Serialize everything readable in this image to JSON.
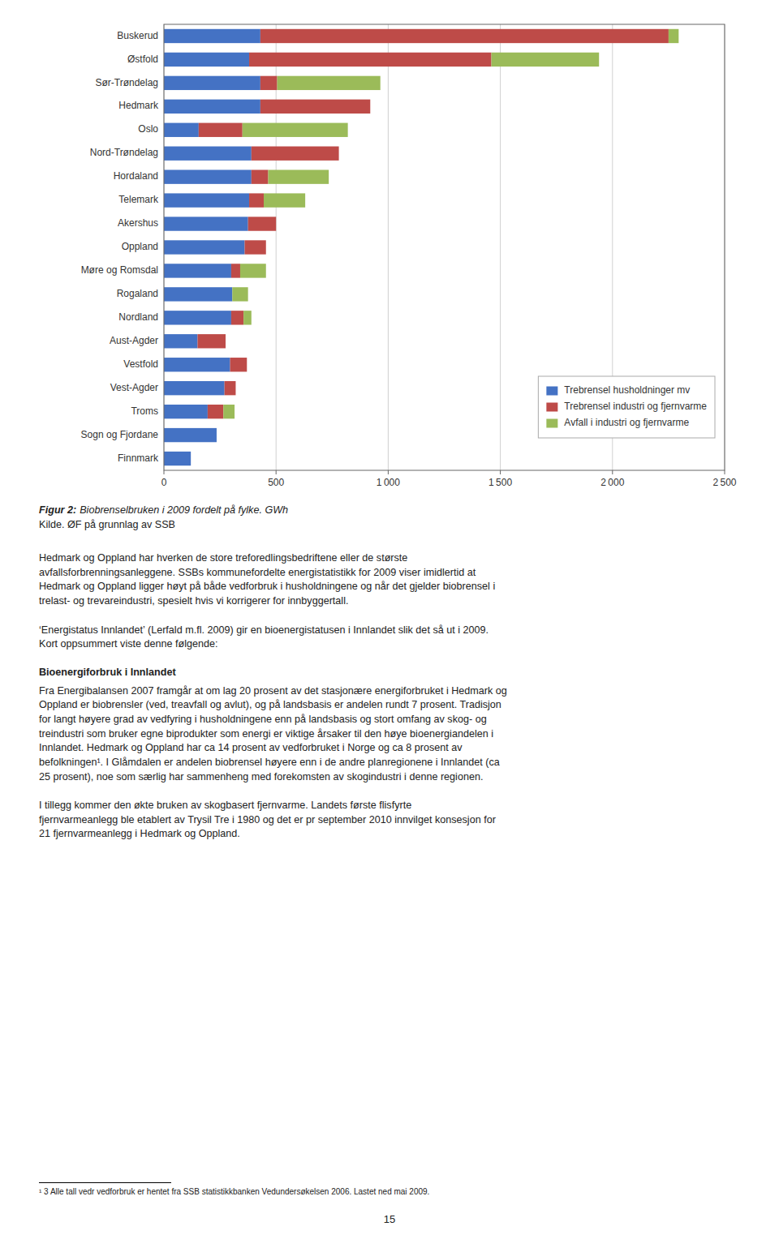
{
  "chart_data": {
    "type": "bar",
    "orientation": "horizontal",
    "stacked": true,
    "title": "Biobrenselbruken i 2009 fordelt på fylke. GWh",
    "categories": [
      "Buskerud",
      "Østfold",
      "Sør-Trøndelag",
      "Hedmark",
      "Oslo",
      "Nord-Trøndelag",
      "Hordaland",
      "Telemark",
      "Akershus",
      "Oppland",
      "Møre og Romsdal",
      "Rogaland",
      "Nordland",
      "Aust-Agder",
      "Vestfold",
      "Vest-Agder",
      "Troms",
      "Sogn og Fjordane",
      "Finnmark"
    ],
    "series": [
      {
        "name": "Trebrensel husholdninger mv",
        "color": "#4472C4",
        "values": [
          430,
          380,
          430,
          430,
          155,
          390,
          390,
          380,
          375,
          360,
          300,
          305,
          300,
          150,
          295,
          270,
          195,
          235,
          120
        ]
      },
      {
        "name": "Trebrensel industri og fjernvarme",
        "color": "#BE4B48",
        "values": [
          1820,
          1080,
          75,
          490,
          195,
          390,
          75,
          65,
          125,
          95,
          40,
          0,
          55,
          125,
          75,
          50,
          70,
          0,
          0
        ]
      },
      {
        "name": "Avfall i industri og fjernvarme",
        "color": "#9BBB59",
        "values": [
          45,
          480,
          460,
          0,
          470,
          0,
          270,
          185,
          0,
          0,
          115,
          70,
          35,
          0,
          0,
          0,
          50,
          0,
          0
        ]
      }
    ],
    "xlim": [
      0,
      2500
    ],
    "xticks": [
      0,
      500,
      {
        "value": 1000,
        "label": "1 000"
      },
      {
        "value": 1500,
        "label": "1 500"
      },
      {
        "value": 2000,
        "label": "2 000"
      },
      {
        "value": 2500,
        "label": "2 500"
      }
    ],
    "grid": true,
    "legend": "lower right"
  },
  "page": {
    "figure_label": "Figur 2:",
    "source": "Kilde. ØF på grunnlag av SSB",
    "body_text": "Hedmark og Oppland har hverken de store treforedlingsbedriftene eller de største\navfallsforbrenningsanleggene. SSBs kommunefordelte energistatistikk for 2009 viser imidlertid at\nHedmark og Oppland ligger høyt på både vedforbruk i husholdningene og når det gjelder biobrensel i\ntrelast- og trevareindustri, spesielt hvis vi korrigerer for innbyggertall.",
    "energistatus_text": "‘Energistatus Innlandet’ (Lerfald m.fl. 2009) gir en bioenergistatusen i Innlandet slik det så ut i 2009.\nKort oppsummert viste denne følgende:",
    "bioenergi_header": "Bioenergiforbruk i Innlandet",
    "bioenergi_text": "Fra Energibalansen 2007 framgår at om lag 20 prosent av det stasjonære energiforbruket i Hedmark og\nOppland er biobrensler (ved, treavfall og avlut), og på landsbasis er andelen rundt 7 prosent. Tradisjon\nfor langt høyere grad av vedfyring i husholdningene enn på landsbasis og stort omfang av skog- og\ntreindustri som bruker egne biprodukter som energi er viktige årsaker til den høye bioenergiandelen i\nInnlandet. Hedmark og Oppland har ca 14 prosent av vedforbruket i Norge og ca 8 prosent av\nbefolkningen¹. I Glåmdalen er andelen biobrensel høyere enn i de andre planregionene i Innlandet (ca\n25 prosent), noe som særlig har sammenheng med forekomsten av skogindustri i denne regionen.",
    "tillegg_text": "I tillegg kommer den økte bruken av skogbasert fjernvarme. Landets første flisfyrte\nfjernvarmeanlegg ble etablert av Trysil Tre i 1980 og det er pr september 2010 innvilget konsesjon for\n21 fjernvarmeanlegg i Hedmark og Oppland.",
    "footnote": "¹ 3 Alle tall vedr vedforbruk er hentet fra SSB statistikkbanken Vedundersøkelsen 2006. Lastet ned mai 2009.",
    "page_number": "15"
  }
}
